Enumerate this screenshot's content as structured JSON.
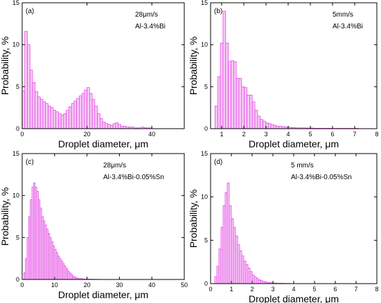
{
  "chart_data": [
    {
      "type": "bar",
      "panel_label": "(a)",
      "annotation": [
        "28μm/s",
        "Al-3.4%Bi"
      ],
      "xlabel": "Droplet diameter, μm",
      "ylabel": "Probability, %",
      "xlim": [
        0,
        50
      ],
      "ylim": [
        0,
        15
      ],
      "xticks": [
        "0",
        "20",
        "40"
      ],
      "xtick_values": [
        0,
        20,
        40
      ],
      "yticks": [
        "0",
        "5",
        "10",
        "15"
      ],
      "ytick_values": [
        0,
        5,
        10,
        15
      ],
      "bin_width": 0.8,
      "bin_start": 0.0,
      "values": [
        4.5,
        11.6,
        10.0,
        7.0,
        5.5,
        4.4,
        3.8,
        3.5,
        3.2,
        3.0,
        2.7,
        2.5,
        2.2,
        2.0,
        1.8,
        1.6,
        1.8,
        2.2,
        2.6,
        3.0,
        3.3,
        3.6,
        3.9,
        4.2,
        4.6,
        4.9,
        4.2,
        3.5,
        2.7,
        1.8,
        1.2,
        0.8,
        0.6,
        0.5,
        0.4,
        0.6,
        0.7,
        0.5,
        0.3,
        0.3,
        0.2,
        0.2,
        0.2,
        0.1,
        0.1,
        0.1,
        0.2,
        0.1,
        0.1,
        0.1
      ]
    },
    {
      "type": "bar",
      "panel_label": "(b)",
      "annotation": [
        "5mm/s",
        "Al-3.4%Bi"
      ],
      "xlabel": "Droplet diameter, μm",
      "ylabel": "Probability, %",
      "xlim": [
        0.5,
        8
      ],
      "ylim": [
        0,
        15
      ],
      "xticks": [
        "1",
        "2",
        "3",
        "4",
        "5",
        "6",
        "7",
        "8"
      ],
      "xtick_values": [
        1,
        2,
        3,
        4,
        5,
        6,
        7,
        8
      ],
      "yticks": [
        "0",
        "5",
        "10",
        "15"
      ],
      "ytick_values": [
        0,
        5,
        10,
        15
      ],
      "bin_width": 0.12,
      "bin_start": 0.7,
      "values": [
        2.7,
        6.2,
        10.2,
        14.0,
        10.2,
        8.0,
        8.1,
        8.0,
        6.0,
        6.0,
        5.0,
        4.9,
        4.0,
        4.0,
        3.2,
        2.2,
        1.5,
        1.1,
        0.9,
        0.7,
        0.6,
        0.5,
        0.4,
        0.3,
        0.3,
        0.25,
        0.2,
        0.2,
        0.15,
        0.15,
        0.1,
        0.1,
        0.1,
        0.1,
        0.08,
        0.08,
        0.08,
        0.05,
        0.05,
        0.05,
        0.05,
        0.05,
        0.05,
        0.05,
        0.04,
        0.04,
        0.04,
        0.04,
        0.04,
        0.04,
        0.04,
        0.04,
        0.04,
        0.04
      ]
    },
    {
      "type": "bar",
      "panel_label": "(c)",
      "annotation": [
        "28μm/s",
        "Al-3.4%Bi-0.05%Sn"
      ],
      "xlabel": "Droplet diameter, μm",
      "ylabel": "Probability, %",
      "xlim": [
        0,
        50
      ],
      "ylim": [
        0,
        15
      ],
      "xticks": [
        "0",
        "10",
        "20",
        "30",
        "40",
        "50"
      ],
      "xtick_values": [
        0,
        10,
        20,
        30,
        40,
        50
      ],
      "yticks": [
        "0",
        "5",
        "10",
        "15"
      ],
      "ytick_values": [
        0,
        5,
        10,
        15
      ],
      "bin_width": 0.5,
      "bin_start": 0.5,
      "values": [
        0.8,
        2.5,
        5.0,
        7.5,
        9.5,
        11.0,
        11.5,
        11.0,
        10.5,
        9.5,
        8.5,
        7.5,
        7.0,
        6.5,
        6.0,
        5.5,
        5.0,
        4.5,
        4.0,
        3.6,
        3.2,
        2.8,
        2.5,
        2.2,
        1.9,
        1.6,
        1.3,
        1.0,
        0.8,
        0.6,
        0.4,
        0.3,
        0.2,
        0.15,
        0.1,
        0.1,
        0.08,
        0.05,
        0.05,
        0.05,
        0.04,
        0.04,
        0.03,
        0.03,
        0.03,
        0.02,
        0.02,
        0.02
      ]
    },
    {
      "type": "bar",
      "panel_label": "(d)",
      "annotation": [
        "5 mm/s",
        "Al-3.4%Bi-0.05%Sn"
      ],
      "xlabel": "Droplet diameter, μm",
      "ylabel": "Probability, %",
      "xlim": [
        0,
        8
      ],
      "ylim": [
        0,
        15
      ],
      "xticks": [
        "0",
        "1",
        "2",
        "3",
        "4",
        "5",
        "6",
        "7",
        "8"
      ],
      "xtick_values": [
        0,
        1,
        2,
        3,
        4,
        5,
        6,
        7,
        8
      ],
      "yticks": [
        "0",
        "5",
        "10",
        "15"
      ],
      "ytick_values": [
        0,
        5,
        10,
        15
      ],
      "bin_width": 0.1,
      "bin_start": 0.2,
      "values": [
        0.8,
        2.0,
        4.0,
        6.5,
        9.0,
        10.5,
        11.6,
        9.0,
        7.5,
        6.5,
        5.5,
        4.5,
        3.8,
        3.2,
        2.6,
        2.2,
        1.8,
        1.4,
        1.0,
        0.8,
        0.6,
        0.45,
        0.35,
        0.25,
        0.2,
        0.15,
        0.12,
        0.1,
        0.08,
        0.06,
        0.05,
        0.05,
        0.04,
        0.04,
        0.03,
        0.03
      ]
    }
  ]
}
